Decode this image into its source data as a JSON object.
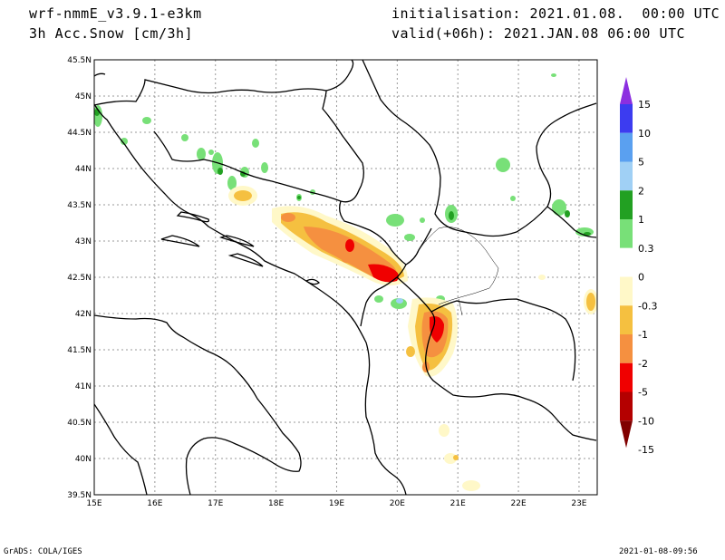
{
  "header": {
    "model": "wrf-nmmE_v3.9.1-e3km",
    "field": "3h Acc.Snow [cm/3h]",
    "init": "initialisation: 2021.01.08.  00:00 UTC",
    "valid": "valid(+06h): 2021.JAN.08 06:00 UTC"
  },
  "footer": {
    "left": "GrADS: COLA/IGES",
    "right": "2021-01-08-09:56"
  },
  "map": {
    "lon_range": [
      15,
      23.3
    ],
    "lat_range": [
      39.5,
      45.5
    ],
    "lon_ticks": [
      "15E",
      "16E",
      "17E",
      "18E",
      "19E",
      "20E",
      "21E",
      "22E",
      "23E"
    ],
    "lat_ticks": [
      "45.5N",
      "45N",
      "44.5N",
      "44N",
      "43.5N",
      "43N",
      "42.5N",
      "42N",
      "41.5N",
      "41N",
      "40.5N",
      "40N",
      "39.5N"
    ]
  },
  "legend": {
    "labels": [
      "15",
      "10",
      "5",
      "2",
      "1",
      "0.3",
      "0",
      "-0.3",
      "-1",
      "-2",
      "-5",
      "-10",
      "-15"
    ],
    "colors": [
      "#8c2fe0",
      "#3c3cf0",
      "#5aa0f0",
      "#a0d0f5",
      "#22a022",
      "#78e078",
      "#ffffff",
      "#fff8c8",
      "#f5c040",
      "#f59040",
      "#f00000",
      "#b40000",
      "#800000"
    ]
  }
}
